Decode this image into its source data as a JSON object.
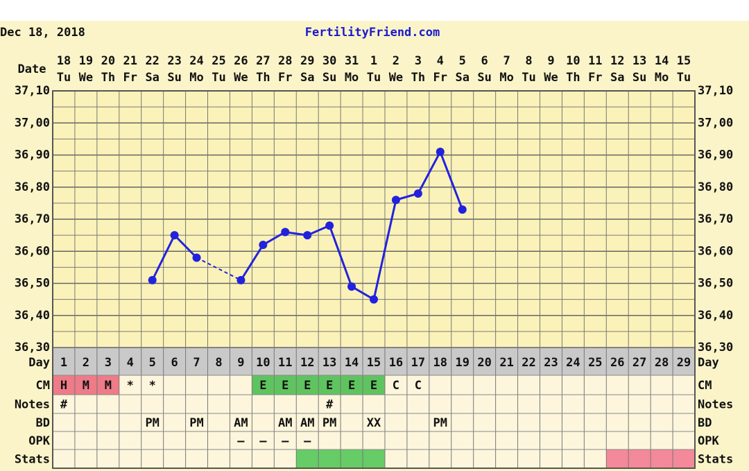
{
  "header": {
    "date": "Dec 18, 2018",
    "site": "FertilityFriend.com"
  },
  "chart_data": {
    "type": "line",
    "date_label": "Date",
    "categories": [
      "18",
      "19",
      "20",
      "21",
      "22",
      "23",
      "24",
      "25",
      "26",
      "27",
      "28",
      "29",
      "30",
      "31",
      "1",
      "2",
      "3",
      "4",
      "5",
      "6",
      "7",
      "8",
      "9",
      "10",
      "11",
      "12",
      "13",
      "14",
      "15"
    ],
    "weekdays": [
      "Tu",
      "We",
      "Th",
      "Fr",
      "Sa",
      "Su",
      "Mo",
      "Tu",
      "We",
      "Th",
      "Fr",
      "Sa",
      "Su",
      "Mo",
      "Tu",
      "We",
      "Th",
      "Fr",
      "Sa",
      "Su",
      "Mo",
      "Tu",
      "We",
      "Th",
      "Fr",
      "Sa",
      "Su",
      "Mo",
      "Tu"
    ],
    "series": [
      {
        "color": "#2222dd",
        "values": [
          null,
          null,
          null,
          null,
          36.51,
          36.65,
          36.58,
          null,
          36.51,
          36.62,
          36.66,
          36.65,
          36.68,
          36.49,
          36.45,
          36.76,
          36.78,
          36.91,
          36.73,
          null,
          null,
          null,
          null,
          null,
          null,
          null,
          null,
          null,
          null
        ]
      }
    ],
    "ylim": [
      36.3,
      37.1
    ],
    "yticks": [
      {
        "value": 36.3,
        "label": "36,30"
      },
      {
        "value": 36.4,
        "label": "36,40"
      },
      {
        "value": 36.5,
        "label": "36,50"
      },
      {
        "value": 36.6,
        "label": "36,60"
      },
      {
        "value": 36.7,
        "label": "36,70"
      },
      {
        "value": 36.8,
        "label": "36,80"
      },
      {
        "value": 36.9,
        "label": "36,90"
      },
      {
        "value": 37.0,
        "label": "37,00"
      },
      {
        "value": 37.1,
        "label": "37,10"
      }
    ],
    "minor_yticks": [
      36.35,
      36.45,
      36.55,
      36.65,
      36.75,
      36.85,
      36.95,
      37.05
    ],
    "grid": true
  },
  "table": {
    "day_label": "Day",
    "days": [
      1,
      2,
      3,
      4,
      5,
      6,
      7,
      8,
      9,
      10,
      11,
      12,
      13,
      14,
      15,
      16,
      17,
      18,
      19,
      20,
      21,
      22,
      23,
      24,
      25,
      26,
      27,
      28,
      29
    ],
    "rows": [
      {
        "label": "CM",
        "cells": [
          "H",
          "M",
          "M",
          "*",
          "*",
          null,
          null,
          null,
          null,
          "E",
          "E",
          "E",
          "E",
          "E",
          "E",
          "C",
          "C",
          null,
          null,
          null,
          null,
          null,
          null,
          null,
          null,
          null,
          null,
          null,
          null
        ],
        "cell_colors": [
          "#ee7b88",
          "#ee7b88",
          "#ee7b88",
          null,
          null,
          null,
          null,
          null,
          null,
          "#5fc45f",
          "#5fc45f",
          "#5fc45f",
          "#5fc45f",
          "#5fc45f",
          "#5fc45f",
          null,
          null,
          null,
          null,
          null,
          null,
          null,
          null,
          null,
          null,
          null,
          null,
          null,
          null
        ]
      },
      {
        "label": "Notes",
        "cells": [
          "#",
          null,
          null,
          null,
          null,
          null,
          null,
          null,
          null,
          null,
          null,
          null,
          "#",
          null,
          null,
          null,
          null,
          null,
          null,
          null,
          null,
          null,
          null,
          null,
          null,
          null,
          null,
          null,
          null
        ]
      },
      {
        "label": "BD",
        "cells": [
          null,
          null,
          null,
          null,
          "PM",
          null,
          "PM",
          null,
          "AM",
          null,
          "AM",
          "AM",
          "PM",
          null,
          "XX",
          null,
          null,
          "PM",
          null,
          null,
          null,
          null,
          null,
          null,
          null,
          null,
          null,
          null,
          null
        ]
      },
      {
        "label": "OPK",
        "cells": [
          null,
          null,
          null,
          null,
          null,
          null,
          null,
          null,
          "–",
          "–",
          "–",
          "–",
          null,
          null,
          null,
          null,
          null,
          null,
          null,
          null,
          null,
          null,
          null,
          null,
          null,
          null,
          null,
          null,
          null
        ]
      },
      {
        "label": "Stats",
        "cells": [
          null,
          null,
          null,
          null,
          null,
          null,
          null,
          null,
          null,
          null,
          null,
          null,
          null,
          null,
          null,
          null,
          null,
          null,
          null,
          null,
          null,
          null,
          null,
          null,
          null,
          null,
          null,
          null,
          null
        ],
        "cell_colors": [
          null,
          null,
          null,
          null,
          null,
          null,
          null,
          null,
          null,
          null,
          null,
          "#66cc66",
          "#66cc66",
          "#66cc66",
          "#66cc66",
          null,
          null,
          null,
          null,
          null,
          null,
          null,
          null,
          null,
          null,
          "#f3899a",
          "#f3899a",
          "#f3899a",
          "#f3899a"
        ]
      }
    ]
  }
}
